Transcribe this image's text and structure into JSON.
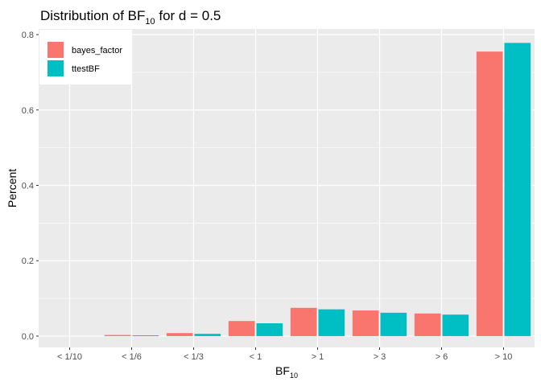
{
  "chart_data": {
    "type": "bar",
    "title": {
      "main": "Distribution of BF",
      "sub": "10",
      "suffix": " for d = 0.5"
    },
    "xlabel": {
      "main": "BF",
      "sub": "10"
    },
    "ylabel": "Percent",
    "categories": [
      "< 1/10",
      "< 1/6",
      "< 1/3",
      "< 1",
      "> 1",
      "> 3",
      "> 6",
      "> 10"
    ],
    "series": [
      {
        "name": "bayes_factor",
        "color": "#F8766D",
        "values": [
          0.0,
          0.003,
          0.008,
          0.04,
          0.075,
          0.068,
          0.06,
          0.755
        ]
      },
      {
        "name": "ttestBF",
        "color": "#00BFC4",
        "values": [
          0.0,
          0.002,
          0.006,
          0.034,
          0.071,
          0.062,
          0.057,
          0.778
        ]
      }
    ],
    "ylim": [
      -0.03,
      0.815
    ],
    "yticks": [
      0.0,
      0.2,
      0.4,
      0.6,
      0.8
    ],
    "ytick_labels": [
      "0.0",
      "0.2",
      "0.4",
      "0.6",
      "0.8"
    ],
    "grid": true,
    "legend_position": "top-left",
    "panel_color": "#EBEBEB"
  }
}
